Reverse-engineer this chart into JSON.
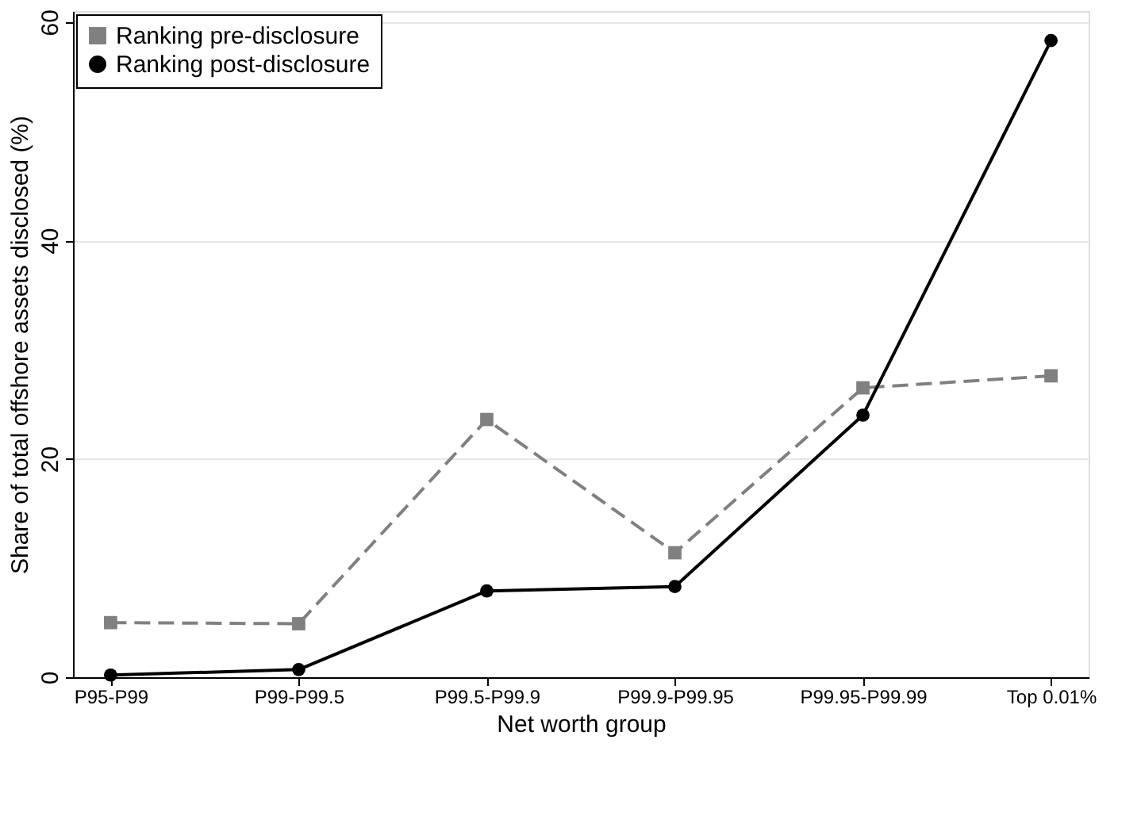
{
  "chart_data": {
    "type": "line",
    "xlabel": "Net worth group",
    "ylabel": "Share of total offshore assets disclosed (%)",
    "categories": [
      "P95-P99",
      "P99-P99.5",
      "P99.5-P99.9",
      "P99.9-P99.95",
      "P99.95-P99.99",
      "Top 0.01%"
    ],
    "ylim": [
      0,
      61
    ],
    "yticks": [
      0,
      20,
      40,
      60
    ],
    "grid": "y",
    "legend": "top left",
    "series": [
      {
        "name": "Ranking pre-disclosure",
        "color": "#808080",
        "marker": "square",
        "line_style": "dashed",
        "values": [
          5.0,
          4.9,
          23.6,
          11.4,
          26.5,
          27.6
        ]
      },
      {
        "name": "Ranking post-disclosure",
        "color": "#000000",
        "marker": "circle",
        "line_style": "solid",
        "values": [
          0.2,
          0.7,
          7.9,
          8.3,
          24.0,
          58.3
        ]
      }
    ]
  }
}
